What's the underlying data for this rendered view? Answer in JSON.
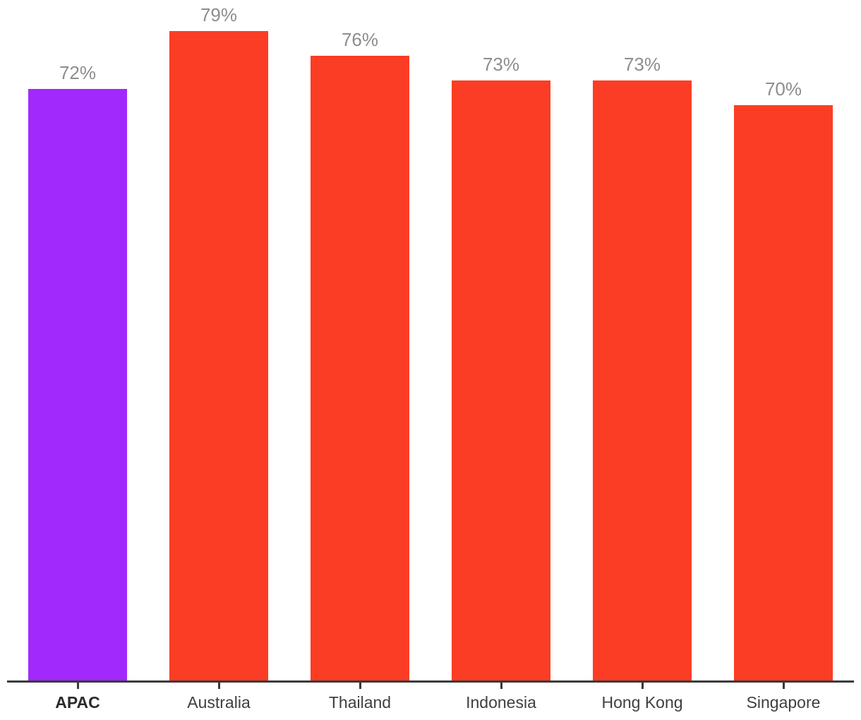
{
  "chart_data": {
    "type": "bar",
    "title": "",
    "xlabel": "",
    "ylabel": "",
    "categories": [
      "APAC",
      "Australia",
      "Thailand",
      "Indonesia",
      "Hong Kong",
      "Singapore"
    ],
    "values": [
      72,
      79,
      76,
      73,
      73,
      70
    ],
    "value_labels": [
      "72%",
      "79%",
      "76%",
      "73%",
      "73%",
      "70%"
    ],
    "unit": "%",
    "highlight_category": "APAC",
    "ylim": [
      0,
      83
    ],
    "grid": false,
    "legend": false,
    "colors": {
      "bar_highlight": "#A229FB",
      "bar_default": "#FC3D25",
      "value_label": "#8D8D8D",
      "category_label": "#3F3F3F",
      "category_label_highlight": "#2B2B2B",
      "axis": "#3A3A3A"
    }
  }
}
